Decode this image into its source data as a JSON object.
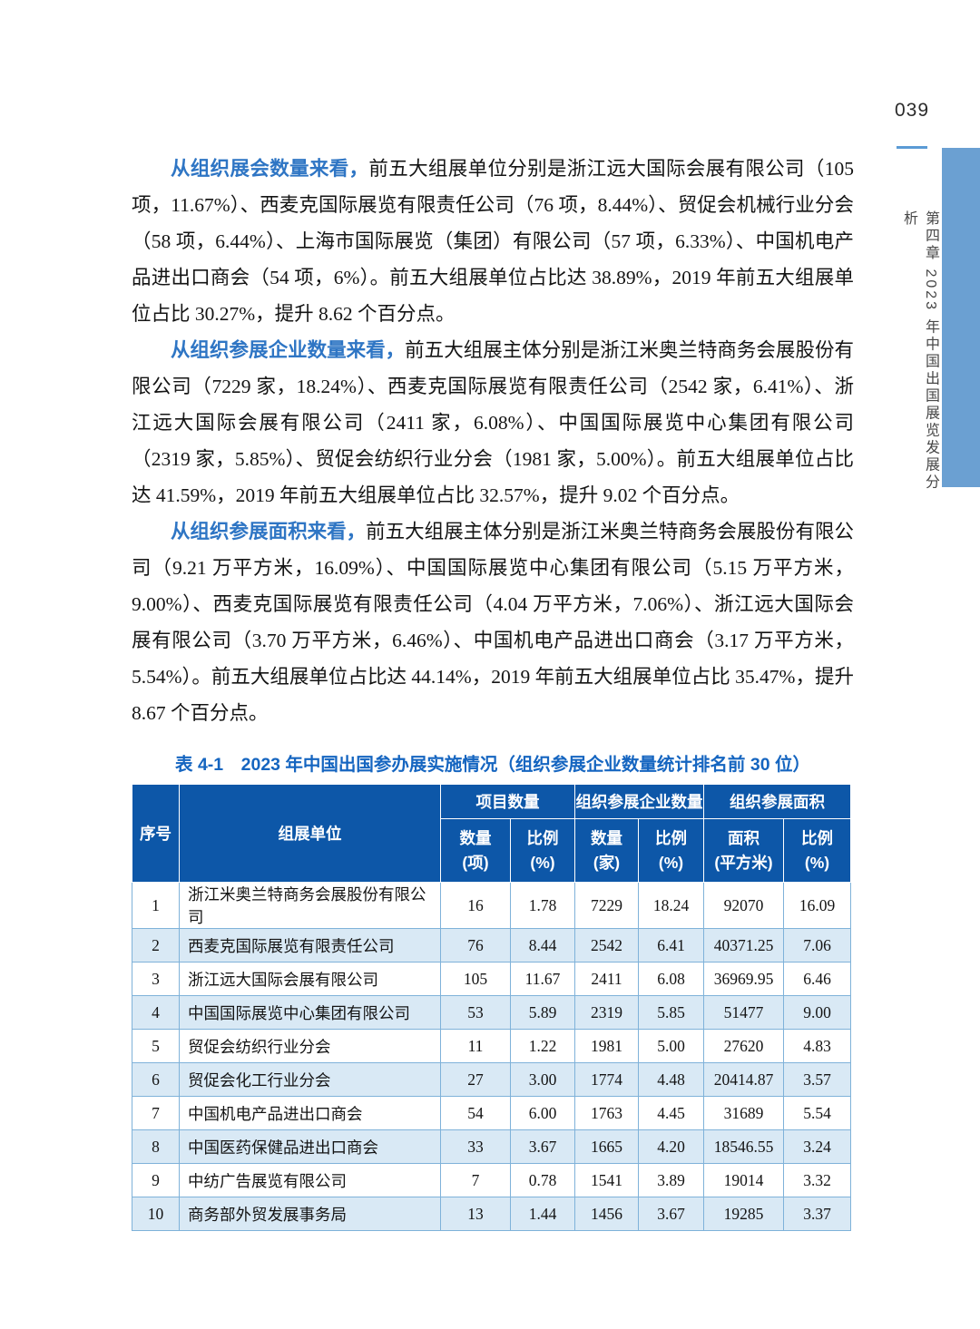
{
  "page": {
    "number": "039"
  },
  "sidebar": {
    "chapter": "第四章  2023 年中国出国展览发展分析"
  },
  "colors": {
    "header_bg": "#0d57a8",
    "row_alt": "#d9e9f5",
    "table_border": "#7fb2d9",
    "side_bar": "#6ba0d2",
    "page_rule": "#5b9bd5",
    "title_blue": "#1565c0",
    "lead_blue": "#2e75c4"
  },
  "paragraphs": [
    {
      "lead": "从组织展会数量来看，",
      "body": "前五大组展单位分别是浙江远大国际会展有限公司（105 项，11.67%）、西麦克国际展览有限责任公司（76 项，8.44%）、贸促会机械行业分会（58 项，6.44%）、上海市国际展览（集团）有限公司（57 项，6.33%）、中国机电产品进出口商会（54 项，6%）。前五大组展单位占比达 38.89%，2019 年前五大组展单位占比 30.27%，提升 8.62 个百分点。"
    },
    {
      "lead": "从组织参展企业数量来看，",
      "body": "前五大组展主体分别是浙江米奥兰特商务会展股份有限公司（7229 家，18.24%）、西麦克国际展览有限责任公司（2542 家，6.41%）、浙江远大国际会展有限公司（2411 家，6.08%）、中国国际展览中心集团有限公司（2319 家，5.85%）、贸促会纺织行业分会（1981 家，5.00%）。前五大组展单位占比达 41.59%，2019 年前五大组展单位占比 32.57%，提升 9.02 个百分点。"
    },
    {
      "lead": "从组织参展面积来看，",
      "body": "前五大组展主体分别是浙江米奥兰特商务会展股份有限公司（9.21 万平方米，16.09%）、中国国际展览中心集团有限公司（5.15 万平方米，9.00%）、西麦克国际展览有限责任公司（4.04 万平方米，7.06%）、浙江远大国际会展有限公司（3.70 万平方米，6.46%）、中国机电产品进出口商会（3.17 万平方米，5.54%）。前五大组展单位占比达 44.14%，2019 年前五大组展单位占比 35.47%，提升 8.67 个百分点。"
    }
  ],
  "table": {
    "title": "表 4-1　2023 年中国出国参办展实施情况（组织参展企业数量统计排名前 30 位）",
    "header": {
      "index_label": "序号",
      "org_label": "组展单位",
      "groups": [
        {
          "label": "项目数量"
        },
        {
          "label": "组织参展企业数量"
        },
        {
          "label": "组织参展面积"
        }
      ],
      "subcols": [
        {
          "line1": "数量",
          "line2": "(项)"
        },
        {
          "line1": "比例",
          "line2": "(%)"
        },
        {
          "line1": "数量",
          "line2": "(家)"
        },
        {
          "line1": "比例",
          "line2": "(%)"
        },
        {
          "line1": "面积",
          "line2": "(平方米)"
        },
        {
          "line1": "比例",
          "line2": "(%)"
        }
      ]
    },
    "rows": [
      [
        "1",
        "浙江米奥兰特商务会展股份有限公司",
        "16",
        "1.78",
        "7229",
        "18.24",
        "92070",
        "16.09"
      ],
      [
        "2",
        "西麦克国际展览有限责任公司",
        "76",
        "8.44",
        "2542",
        "6.41",
        "40371.25",
        "7.06"
      ],
      [
        "3",
        "浙江远大国际会展有限公司",
        "105",
        "11.67",
        "2411",
        "6.08",
        "36969.95",
        "6.46"
      ],
      [
        "4",
        "中国国际展览中心集团有限公司",
        "53",
        "5.89",
        "2319",
        "5.85",
        "51477",
        "9.00"
      ],
      [
        "5",
        "贸促会纺织行业分会",
        "11",
        "1.22",
        "1981",
        "5.00",
        "27620",
        "4.83"
      ],
      [
        "6",
        "贸促会化工行业分会",
        "27",
        "3.00",
        "1774",
        "4.48",
        "20414.87",
        "3.57"
      ],
      [
        "7",
        "中国机电产品进出口商会",
        "54",
        "6.00",
        "1763",
        "4.45",
        "31689",
        "5.54"
      ],
      [
        "8",
        "中国医药保健品进出口商会",
        "33",
        "3.67",
        "1665",
        "4.20",
        "18546.55",
        "3.24"
      ],
      [
        "9",
        "中纺广告展览有限公司",
        "7",
        "0.78",
        "1541",
        "3.89",
        "19014",
        "3.32"
      ],
      [
        "10",
        "商务部外贸发展事务局",
        "13",
        "1.44",
        "1456",
        "3.67",
        "19285",
        "3.37"
      ]
    ]
  }
}
